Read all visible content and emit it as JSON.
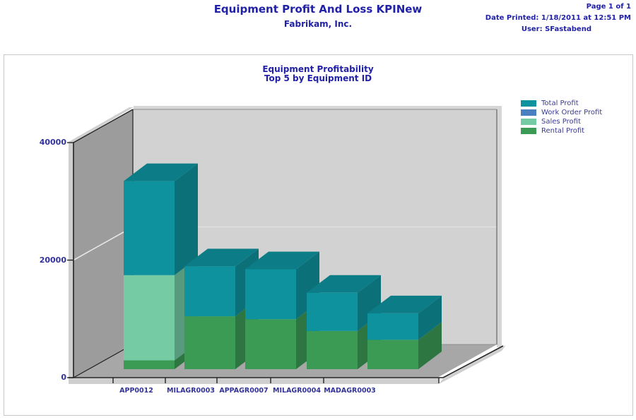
{
  "header": {
    "title": "Equipment Profit And Loss KPINew",
    "company": "Fabrikam, Inc.",
    "page": "Page 1 of 1",
    "date_printed": "Date Printed: 1/18/2011 at 12:51 PM",
    "user": "User: SFastabend"
  },
  "chart": {
    "title_line1": "Equipment Profitability",
    "title_line2": "Top 5 by  Equipment ID"
  },
  "chart_data": {
    "type": "bar",
    "subtype": "3d-stacked-column",
    "title": "Equipment Profitability",
    "subtitle": "Top 5 by  Equipment ID",
    "categories": [
      "APP0012",
      "MILAGR0003",
      "APPAGR0007",
      "MILAGR0004",
      "MADAGR0003"
    ],
    "series": [
      {
        "name": "Total Profit",
        "color": "#0E939E",
        "role": "stack-top-to-total",
        "values": [
          32000,
          17500,
          17000,
          13000,
          9500
        ]
      },
      {
        "name": "Work Order Profit",
        "color": "#4B80C0",
        "role": "stack-segment",
        "values": [
          0,
          0,
          0,
          0,
          0
        ]
      },
      {
        "name": "Sales Profit",
        "color": "#74CBA4",
        "role": "stack-segment",
        "values": [
          14500,
          0,
          0,
          0,
          0
        ]
      },
      {
        "name": "Rental Profit",
        "color": "#3B9B55",
        "role": "stack-segment",
        "values": [
          1500,
          9000,
          8500,
          6500,
          5000
        ]
      }
    ],
    "ylim": [
      0,
      40000
    ],
    "yticks": [
      0,
      20000,
      40000
    ],
    "ytick_labels": [
      "0",
      "20000",
      "40000"
    ],
    "grid": "y-gridline-at-20000",
    "legend_position": "top-right",
    "wall_colors": {
      "back": "#D2D2D2",
      "left": "#9C9C9C",
      "floor": "#A7A7A7",
      "bevel": "#CFCFCF"
    },
    "text_color": "#32329B"
  }
}
